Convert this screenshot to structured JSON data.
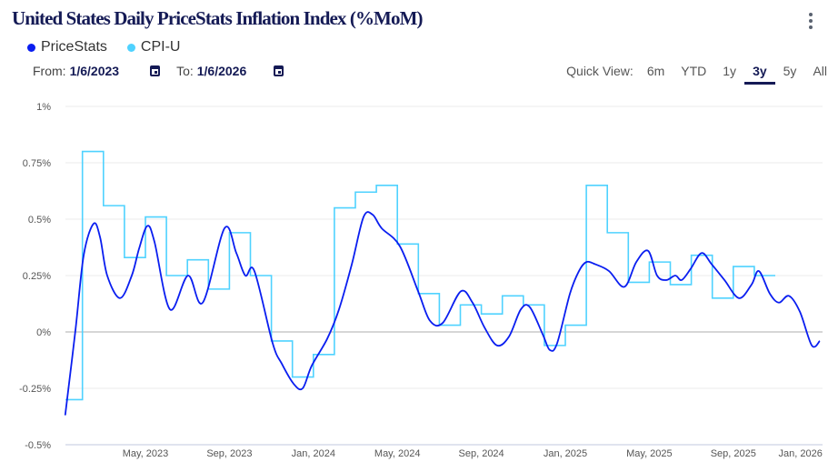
{
  "header": {
    "title": "United States Daily PriceStats Inflation Index (%MoM)",
    "menu_icon": "more-vertical-icon"
  },
  "legend": [
    {
      "label": "PriceStats",
      "color": "#0a1ef0"
    },
    {
      "label": "CPI-U",
      "color": "#4fd2ff"
    }
  ],
  "dates": {
    "from_label": "From:",
    "from_value": "1/6/2023",
    "to_label": "To:",
    "to_value": "1/6/2026"
  },
  "quick_view": {
    "label": "Quick View:",
    "options": [
      "6m",
      "YTD",
      "1y",
      "3y",
      "5y",
      "All"
    ],
    "selected": "3y"
  },
  "chart_data": {
    "type": "line",
    "title": "United States Daily PriceStats Inflation Index (%MoM)",
    "x_unit": "months since Jan 1, 2023",
    "xlim": [
      0.17,
      36.2
    ],
    "ylim": [
      -0.5,
      1
    ],
    "y_ticks": [
      {
        "v": 1,
        "label": "1%"
      },
      {
        "v": 0.75,
        "label": "0.75%"
      },
      {
        "v": 0.5,
        "label": "0.5%"
      },
      {
        "v": 0.25,
        "label": "0.25%"
      },
      {
        "v": 0,
        "label": "0%"
      },
      {
        "v": -0.25,
        "label": "-0.25%"
      },
      {
        "v": -0.5,
        "label": "-0.5%"
      }
    ],
    "x_ticks": [
      {
        "t": 4,
        "label": "May, 2023"
      },
      {
        "t": 8,
        "label": "Sep, 2023"
      },
      {
        "t": 12,
        "label": "Jan, 2024"
      },
      {
        "t": 16,
        "label": "May, 2024"
      },
      {
        "t": 20,
        "label": "Sep, 2024"
      },
      {
        "t": 24,
        "label": "Jan, 2025"
      },
      {
        "t": 28,
        "label": "May, 2025"
      },
      {
        "t": 32,
        "label": "Sep, 2025"
      },
      {
        "t": 35.2,
        "label": "Jan, 2026"
      }
    ],
    "grid": true,
    "series": [
      {
        "name": "PriceStats",
        "color": "#0a1ef0",
        "points": [
          [
            0.17,
            -0.36
          ],
          [
            0.23,
            -0.33
          ],
          [
            0.67,
            0.01
          ],
          [
            1.06,
            0.34
          ],
          [
            1.53,
            0.48
          ],
          [
            1.84,
            0.42
          ],
          [
            2.18,
            0.25
          ],
          [
            2.79,
            0.15
          ],
          [
            3.35,
            0.25
          ],
          [
            3.7,
            0.37
          ],
          [
            4.09,
            0.47
          ],
          [
            4.43,
            0.4
          ],
          [
            5.17,
            0.1
          ],
          [
            6.03,
            0.25
          ],
          [
            6.73,
            0.13
          ],
          [
            7.77,
            0.46
          ],
          [
            8.33,
            0.35
          ],
          [
            8.76,
            0.25
          ],
          [
            9.19,
            0.27
          ],
          [
            10.06,
            -0.05
          ],
          [
            10.49,
            -0.14
          ],
          [
            11.06,
            -0.23
          ],
          [
            11.49,
            -0.25
          ],
          [
            11.92,
            -0.15
          ],
          [
            12.66,
            -0.03
          ],
          [
            13.22,
            0.1
          ],
          [
            13.83,
            0.3
          ],
          [
            14.39,
            0.51
          ],
          [
            14.82,
            0.52
          ],
          [
            15.25,
            0.46
          ],
          [
            16.12,
            0.38
          ],
          [
            16.99,
            0.18
          ],
          [
            17.55,
            0.05
          ],
          [
            18.16,
            0.04
          ],
          [
            19.02,
            0.18
          ],
          [
            19.58,
            0.13
          ],
          [
            20.15,
            0.02
          ],
          [
            20.75,
            -0.06
          ],
          [
            21.32,
            -0.02
          ],
          [
            21.88,
            0.1
          ],
          [
            22.31,
            0.11
          ],
          [
            22.92,
            -0.01
          ],
          [
            23.26,
            -0.08
          ],
          [
            23.61,
            -0.05
          ],
          [
            24.22,
            0.17
          ],
          [
            24.65,
            0.27
          ],
          [
            25.0,
            0.31
          ],
          [
            25.43,
            0.3
          ],
          [
            26.08,
            0.27
          ],
          [
            26.81,
            0.2
          ],
          [
            27.38,
            0.31
          ],
          [
            27.94,
            0.36
          ],
          [
            28.37,
            0.25
          ],
          [
            28.8,
            0.23
          ],
          [
            29.24,
            0.25
          ],
          [
            29.54,
            0.23
          ],
          [
            29.97,
            0.28
          ],
          [
            30.49,
            0.35
          ],
          [
            30.97,
            0.3
          ],
          [
            31.58,
            0.23
          ],
          [
            32.27,
            0.15
          ],
          [
            32.87,
            0.21
          ],
          [
            33.22,
            0.27
          ],
          [
            33.74,
            0.17
          ],
          [
            34.17,
            0.13
          ],
          [
            34.65,
            0.16
          ],
          [
            35.17,
            0.09
          ],
          [
            35.74,
            -0.06
          ],
          [
            36.12,
            -0.04
          ]
        ]
      },
      {
        "name": "CPI-U",
        "color": "#4fd2ff",
        "step_start_month": 0,
        "values": [
          -0.3,
          0.8,
          0.56,
          0.33,
          0.51,
          0.25,
          0.32,
          0.19,
          0.44,
          0.25,
          -0.04,
          -0.2,
          -0.1,
          0.55,
          0.62,
          0.65,
          0.39,
          0.17,
          0.03,
          0.12,
          0.08,
          0.16,
          0.12,
          -0.06,
          0.03,
          0.65,
          0.44,
          0.22,
          0.31,
          0.21,
          0.34,
          0.15,
          0.29,
          0.25
        ]
      }
    ]
  }
}
